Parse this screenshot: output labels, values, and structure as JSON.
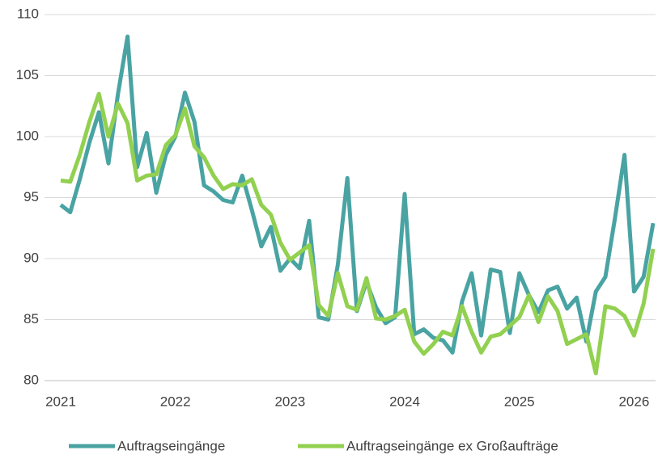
{
  "chart_data": {
    "type": "line",
    "categories": [
      "2021",
      null,
      null,
      null,
      null,
      null,
      null,
      null,
      null,
      null,
      null,
      null,
      "2022",
      null,
      null,
      null,
      null,
      null,
      null,
      null,
      null,
      null,
      null,
      null,
      "2023",
      null,
      null,
      null,
      null,
      null,
      null,
      null,
      null,
      null,
      null,
      null,
      "2024",
      null,
      null,
      null,
      null,
      null,
      null,
      null,
      null,
      null,
      null,
      null,
      "2025",
      null,
      null,
      null,
      null,
      null,
      null,
      null,
      null,
      null,
      null,
      null,
      "2026",
      null,
      null
    ],
    "series": [
      {
        "name": "Auftragseingänge",
        "color": "#4aa3a3",
        "values": [
          94.4,
          93.8,
          96.5,
          99.5,
          102.0,
          97.8,
          103.5,
          108.2,
          97.5,
          100.3,
          95.4,
          98.5,
          100.0,
          103.6,
          101.2,
          96.0,
          95.5,
          94.8,
          94.6,
          96.8,
          94.0,
          91.0,
          92.6,
          89.0,
          90.0,
          89.2,
          93.1,
          85.2,
          85.0,
          89.5,
          96.6,
          85.7,
          88.1,
          86.0,
          84.7,
          85.2,
          95.3,
          83.8,
          84.2,
          83.5,
          83.3,
          82.3,
          86.5,
          88.8,
          83.7,
          89.1,
          88.9,
          83.9,
          88.8,
          87.0,
          85.6,
          87.4,
          87.7,
          85.9,
          86.8,
          83.2,
          87.3,
          88.5,
          93.3,
          98.5,
          87.3,
          88.5,
          92.9
        ]
      },
      {
        "name": "Auftragseingänge ex Großaufträge",
        "color": "#92d050",
        "values": [
          96.4,
          96.3,
          98.5,
          101.2,
          103.5,
          100.0,
          102.7,
          101.1,
          96.4,
          96.8,
          96.9,
          99.3,
          100.1,
          102.3,
          99.2,
          98.3,
          96.8,
          95.7,
          96.1,
          96.0,
          96.5,
          94.4,
          93.6,
          91.3,
          89.9,
          90.5,
          91.1,
          86.2,
          85.3,
          88.8,
          86.1,
          85.8,
          88.4,
          85.1,
          85.0,
          85.3,
          85.8,
          83.2,
          82.2,
          83.0,
          84.0,
          83.7,
          86.1,
          84.0,
          82.3,
          83.6,
          83.8,
          84.5,
          85.2,
          87.0,
          84.8,
          86.9,
          85.7,
          83.0,
          83.4,
          83.8,
          80.6,
          86.1,
          85.9,
          85.3,
          83.7,
          86.3,
          90.8
        ]
      }
    ],
    "ylim": [
      80,
      110
    ],
    "yticks": [
      80,
      85,
      90,
      95,
      100,
      105,
      110
    ],
    "grid": true,
    "legend": "bottom"
  }
}
